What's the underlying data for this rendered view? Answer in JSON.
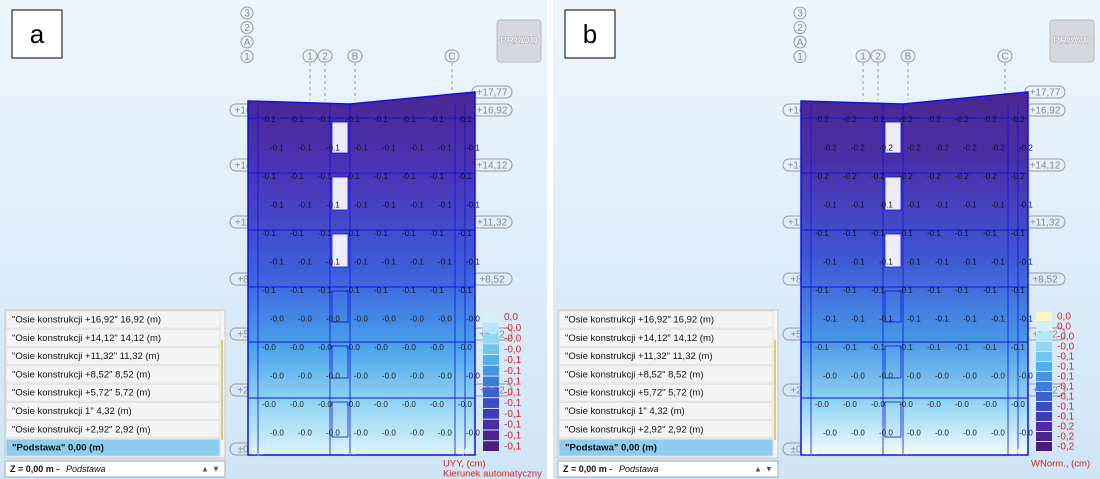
{
  "panels": [
    {
      "label": "a",
      "button": "PRAWO",
      "axes_top": [
        "3",
        "2",
        "A",
        "1"
      ],
      "axes": [
        "1",
        "2",
        "B",
        "C"
      ],
      "levels_left": [
        "+16,92",
        "+14,12",
        "+11,32",
        "+8,52",
        "+5,72",
        "+2,92",
        "±0,00"
      ],
      "levels_right": [
        "+17,77",
        "+16,92",
        "+14,12",
        "+11,32",
        "+8,52",
        "+5,72",
        "+2,92"
      ],
      "contour_labels": [
        [
          "-0.1",
          "-0.1",
          "-0.1",
          "-0.1",
          "-0.1",
          "-0.1",
          "-0.1",
          "-0.1"
        ],
        [
          "-0.1",
          "-0.1",
          "-0.1",
          "-0.1",
          "-0.1",
          "-0.1",
          "-0.1",
          "-0.1"
        ],
        [
          "-0.1",
          "-0.1",
          "-0.1",
          "-0.1",
          "-0.1",
          "-0.1",
          "-0.1",
          "-0.1"
        ],
        [
          "-0.1",
          "-0.1",
          "-0.1",
          "-0.1",
          "-0.1",
          "-0.1",
          "-0.1",
          "-0.1"
        ],
        [
          "-0.1",
          "-0.1",
          "-0.1",
          "-0.1",
          "-0.1",
          "-0.1",
          "-0.1",
          "-0.1"
        ],
        [
          "-0.1",
          "-0.1",
          "-0.1",
          "-0.1",
          "-0.1",
          "-0.1",
          "-0.1",
          "-0.1"
        ],
        [
          "-0.1",
          "-0.1",
          "-0.1",
          "-0.1",
          "-0.1",
          "-0.1",
          "-0.1",
          "-0.1"
        ],
        [
          "-0.0",
          "-0.0",
          "-0.0",
          "-0.0",
          "-0.0",
          "-0.0",
          "-0.0",
          "-0.0"
        ],
        [
          "-0.0",
          "-0.0",
          "-0.0",
          "-0.0",
          "-0.0",
          "-0.0",
          "-0.0",
          "-0.0"
        ],
        [
          "-0.0",
          "-0.0",
          "-0.0",
          "-0.0",
          "-0.0",
          "-0.0",
          "-0.0",
          "-0.0"
        ],
        [
          "-0.0",
          "-0.0",
          "-0.0",
          "-0.0",
          "-0.0",
          "-0.0",
          "-0.0",
          "-0.0"
        ],
        [
          "-0.0",
          "-0.0",
          "-0.0",
          "-0.0",
          "-0.0",
          "-0.0",
          "-0.0",
          "-0.0"
        ]
      ],
      "bottom_labels": [
        "0,0",
        "0.0",
        "0,0"
      ],
      "list": [
        "\"Osie konstrukcji +16,92\"  16,92 (m)",
        "\"Osie konstrukcji +14,12\"  14,12 (m)",
        "\"Osie konstrukcji +11,32\"  11,32 (m)",
        "\"Osie konstrukcji +8,52\"  8,52 (m)",
        "\"Osie konstrukcji +5,72\"  5,72 (m)",
        "\"Osie konstrukcji 1\"  4,32 (m)",
        "\"Osie konstrukcji +2,92\"  2,92 (m)",
        "\"Podstawa\"  0,00 (m)"
      ],
      "z_row": "Z = 0,00 m - ",
      "z_level": "Podstawa",
      "legend_values": [
        "0,0",
        "-0,0",
        "-0,0",
        "-0,0",
        "-0,1",
        "-0,1",
        "-0,1",
        "-0,1",
        "-0,1",
        "-0,1",
        "-0,1",
        "-0,1",
        "-0,1"
      ],
      "legend_title": "UYY, (cm)",
      "legend_subtitle": "Kierunek automatyczny"
    },
    {
      "label": "b",
      "button": "PRAWO",
      "axes_top": [
        "3",
        "2",
        "A",
        "1"
      ],
      "axes": [
        "1",
        "2",
        "B",
        "C"
      ],
      "levels_left": [
        "+16,92",
        "+14,12",
        "+11,32",
        "+8,52",
        "+5,72",
        "+2,92",
        "±0,00"
      ],
      "levels_right": [
        "+17,77",
        "+16,92",
        "+14,12",
        "+11,32",
        "+8,52",
        "+5,72",
        "+2,92"
      ],
      "contour_labels": [
        [
          "-0.2",
          "-0.2",
          "-0.2",
          "-0.2",
          "-0.2",
          "-0.2",
          "-0.2",
          "-0.2"
        ],
        [
          "-0.2",
          "-0.2",
          "-0.2",
          "-0.2",
          "-0.2",
          "-0.2",
          "-0.2",
          "-0.2"
        ],
        [
          "-0.2",
          "-0.2",
          "-0.2",
          "-0.2",
          "-0.2",
          "-0.2",
          "-0.2",
          "-0.2"
        ],
        [
          "-0.1",
          "-0.1",
          "-0.1",
          "-0.1",
          "-0.1",
          "-0.1",
          "-0.1",
          "-0.1"
        ],
        [
          "-0.1",
          "-0.1",
          "-0.1",
          "-0.1",
          "-0.1",
          "-0.1",
          "-0.1",
          "-0.1"
        ],
        [
          "-0.1",
          "-0.1",
          "-0.1",
          "-0.1",
          "-0.1",
          "-0.1",
          "-0.1",
          "-0.1"
        ],
        [
          "-0.1",
          "-0.1",
          "-0.1",
          "-0.1",
          "-0.1",
          "-0.1",
          "-0.1",
          "-0.1"
        ],
        [
          "-0.1",
          "-0.1",
          "-0.1",
          "-0.1",
          "-0.1",
          "-0.1",
          "-0.1",
          "-0.1"
        ],
        [
          "-0.1",
          "-0.1",
          "-0.1",
          "-0.1",
          "-0.1",
          "-0.1",
          "-0.1",
          "-0.1"
        ],
        [
          "-0.0",
          "-0.0",
          "-0.0",
          "-0.0",
          "-0.0",
          "-0.0",
          "-0.0",
          "-0.0"
        ],
        [
          "-0.0",
          "-0.0",
          "-0.0",
          "-0.0",
          "-0.0",
          "-0.0",
          "-0.0",
          "-0.0"
        ],
        [
          "-0.0",
          "-0.0",
          "-0.0",
          "-0.0",
          "-0.0",
          "-0.0",
          "-0.0",
          "-0.0"
        ]
      ],
      "bottom_labels": [
        "0.0",
        "0.0",
        "0.0"
      ],
      "list": [
        "\"Osie konstrukcji +16,92\"  16,92 (m)",
        "\"Osie konstrukcji +14,12\"  14,12 (m)",
        "\"Osie konstrukcji +11,32\"  11,32 (m)",
        "\"Osie konstrukcji +8,52\"  8,52 (m)",
        "\"Osie konstrukcji +5,72\"  5,72 (m)",
        "\"Osie konstrukcji 1\"  4,32 (m)",
        "\"Osie konstrukcji +2,92\"  2,92 (m)",
        "\"Podstawa\"  0,00 (m)"
      ],
      "z_row": "Z = 0,00 m - ",
      "z_level": "Podstawa",
      "legend_values": [
        "0,0",
        "0,0",
        "-0,0",
        "-0,0",
        "-0,1",
        "-0,1",
        "-0,1",
        "-0,1",
        "-0,1",
        "-0,1",
        "-0,1",
        "-0,2",
        "-0,2",
        "-0,2"
      ],
      "legend_title": "WNorm., (cm)"
    }
  ]
}
